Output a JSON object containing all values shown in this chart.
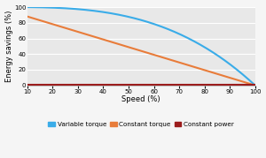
{
  "title": "",
  "xlabel": "Speed (%)",
  "ylabel": "Energy savings (%)",
  "xlim": [
    10,
    100
  ],
  "ylim": [
    0,
    100
  ],
  "xticks": [
    10,
    20,
    30,
    40,
    50,
    60,
    70,
    80,
    90,
    100
  ],
  "yticks": [
    0,
    20,
    40,
    60,
    80,
    100
  ],
  "plot_bg_color": "#e8e8e8",
  "fig_bg_color": "#f5f5f5",
  "variable_torque_color": "#3aace8",
  "constant_torque_color": "#e87c3a",
  "constant_power_color": "#9b1c1c",
  "legend_labels": [
    "Variable torque",
    "Constant torque",
    "Constant power"
  ],
  "legend_colors": [
    "#3aace8",
    "#e87c3a",
    "#9b1c1c"
  ],
  "line_width": 1.5,
  "figsize": [
    3.0,
    1.79
  ],
  "dpi": 100
}
